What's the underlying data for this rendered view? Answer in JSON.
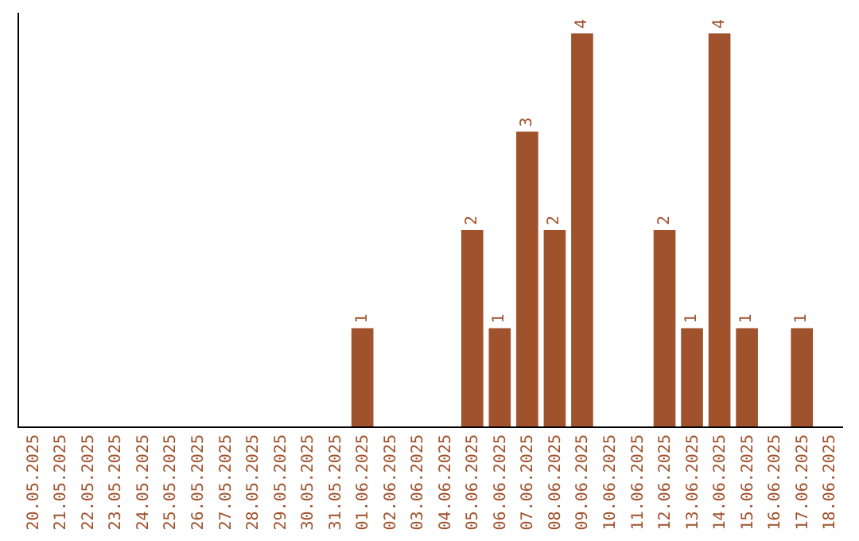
{
  "chart_data": {
    "type": "bar",
    "categories": [
      "20.05.2025",
      "21.05.2025",
      "22.05.2025",
      "23.05.2025",
      "24.05.2025",
      "25.05.2025",
      "26.05.2025",
      "27.05.2025",
      "28.05.2025",
      "29.05.2025",
      "30.05.2025",
      "31.05.2025",
      "01.06.2025",
      "02.06.2025",
      "03.06.2025",
      "04.06.2025",
      "05.06.2025",
      "06.06.2025",
      "07.06.2025",
      "08.06.2025",
      "09.06.2025",
      "10.06.2025",
      "11.06.2025",
      "12.06.2025",
      "13.06.2025",
      "14.06.2025",
      "15.06.2025",
      "16.06.2025",
      "17.06.2025",
      "18.06.2025"
    ],
    "values": [
      null,
      null,
      null,
      null,
      null,
      null,
      null,
      null,
      null,
      null,
      null,
      null,
      1,
      null,
      null,
      null,
      2,
      1,
      3,
      2,
      4,
      null,
      null,
      2,
      1,
      4,
      1,
      null,
      1,
      null
    ],
    "data_labels": true,
    "color": "#a0522d"
  }
}
